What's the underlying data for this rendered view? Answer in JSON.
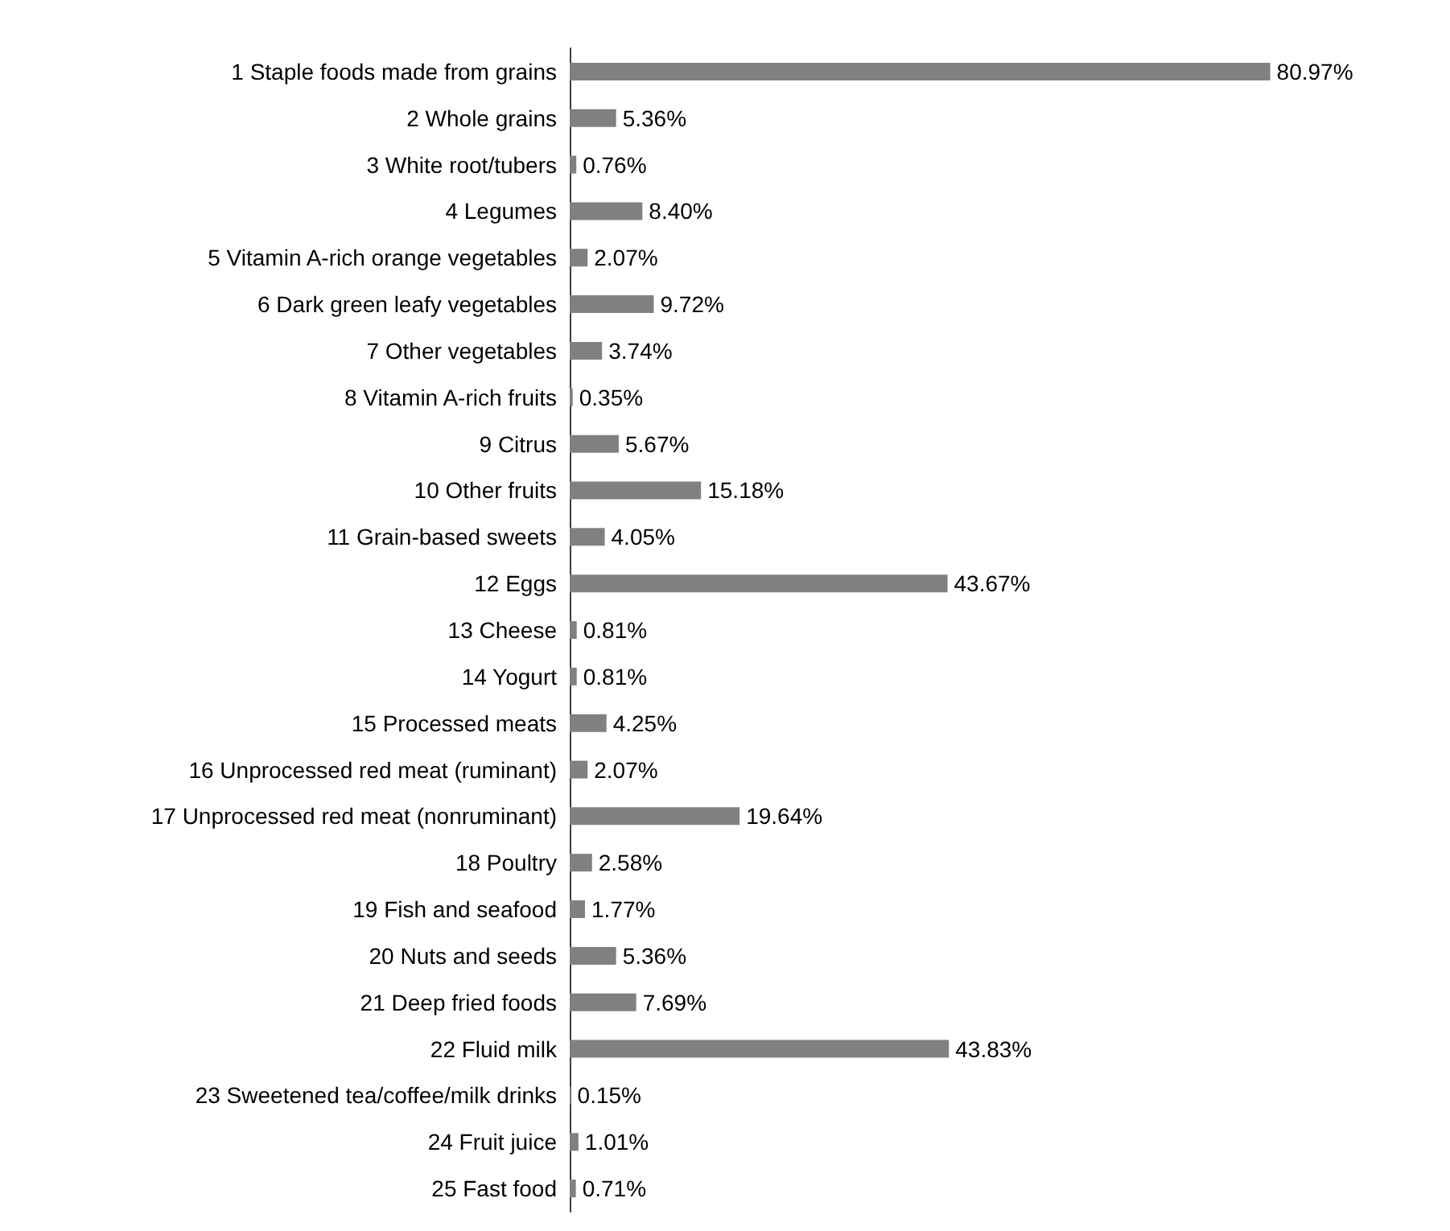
{
  "chart_data": {
    "type": "bar",
    "orientation": "horizontal",
    "categories": [
      "1 Staple foods made from grains",
      "2 Whole grains",
      "3 White root/tubers",
      "4 Legumes",
      "5 Vitamin A-rich orange vegetables",
      "6 Dark green leafy vegetables",
      "7 Other vegetables",
      "8 Vitamin A-rich fruits",
      "9 Citrus",
      "10 Other fruits",
      "11 Grain-based sweets",
      "12 Eggs",
      "13 Cheese",
      "14 Yogurt",
      "15 Processed meats",
      "16 Unprocessed red meat (ruminant)",
      "17 Unprocessed red meat (nonruminant)",
      "18 Poultry",
      "19 Fish and seafood",
      "20 Nuts and seeds",
      "21 Deep fried foods",
      "22 Fluid milk",
      "23 Sweetened tea/coffee/milk drinks",
      "24 Fruit juice",
      "25 Fast food"
    ],
    "values": [
      80.97,
      5.36,
      0.76,
      8.4,
      2.07,
      9.72,
      3.74,
      0.35,
      5.67,
      15.18,
      4.05,
      43.67,
      0.81,
      0.81,
      4.25,
      2.07,
      19.64,
      2.58,
      1.77,
      5.36,
      7.69,
      43.83,
      0.15,
      1.01,
      0.71
    ],
    "value_labels": [
      "80.97%",
      "5.36%",
      "0.76%",
      "8.40%",
      "2.07%",
      "9.72%",
      "3.74%",
      "0.35%",
      "5.67%",
      "15.18%",
      "4.05%",
      "43.67%",
      "0.81%",
      "0.81%",
      "4.25%",
      "2.07%",
      "19.64%",
      "2.58%",
      "1.77%",
      "5.36%",
      "7.69%",
      "43.83%",
      "0.15%",
      "1.01%",
      "0.71%"
    ],
    "color": "#808080"
  }
}
